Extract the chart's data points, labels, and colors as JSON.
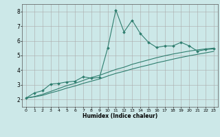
{
  "title": "",
  "xlabel": "Humidex (Indice chaleur)",
  "background_color": "#cce8e8",
  "grid_color": "#aaaaaa",
  "line_color": "#2e7d6e",
  "xlim": [
    -0.5,
    23.5
  ],
  "ylim": [
    1.5,
    8.5
  ],
  "xticks": [
    0,
    1,
    2,
    3,
    4,
    5,
    6,
    7,
    8,
    9,
    10,
    11,
    12,
    13,
    14,
    15,
    16,
    17,
    18,
    19,
    20,
    21,
    22,
    23
  ],
  "yticks": [
    2,
    3,
    4,
    5,
    6,
    7,
    8
  ],
  "line1_x": [
    0,
    1,
    2,
    3,
    4,
    5,
    6,
    7,
    8,
    9,
    10,
    11,
    12,
    13,
    14,
    15,
    16,
    17,
    18,
    19,
    20,
    21,
    22,
    23
  ],
  "line1_y": [
    2.1,
    2.45,
    2.6,
    3.05,
    3.1,
    3.2,
    3.25,
    3.55,
    3.45,
    3.5,
    5.5,
    8.1,
    6.6,
    7.4,
    6.5,
    5.9,
    5.55,
    5.65,
    5.65,
    5.9,
    5.65,
    5.3,
    5.4,
    5.45
  ],
  "line2_x": [
    0,
    1,
    2,
    3,
    4,
    5,
    6,
    7,
    8,
    9,
    10,
    11,
    12,
    13,
    14,
    15,
    16,
    17,
    18,
    19,
    20,
    21,
    22,
    23
  ],
  "line2_y": [
    2.1,
    2.2,
    2.35,
    2.55,
    2.75,
    2.95,
    3.1,
    3.3,
    3.5,
    3.65,
    3.85,
    4.05,
    4.2,
    4.4,
    4.55,
    4.7,
    4.85,
    4.98,
    5.1,
    5.2,
    5.3,
    5.38,
    5.45,
    5.5
  ],
  "line3_x": [
    0,
    1,
    2,
    3,
    4,
    5,
    6,
    7,
    8,
    9,
    10,
    11,
    12,
    13,
    14,
    15,
    16,
    17,
    18,
    19,
    20,
    21,
    22,
    23
  ],
  "line3_y": [
    2.1,
    2.18,
    2.28,
    2.45,
    2.6,
    2.78,
    2.92,
    3.1,
    3.25,
    3.4,
    3.6,
    3.78,
    3.92,
    4.08,
    4.22,
    4.35,
    4.5,
    4.62,
    4.75,
    4.87,
    4.98,
    5.08,
    5.18,
    5.28
  ],
  "figsize": [
    3.2,
    2.0
  ],
  "dpi": 100
}
